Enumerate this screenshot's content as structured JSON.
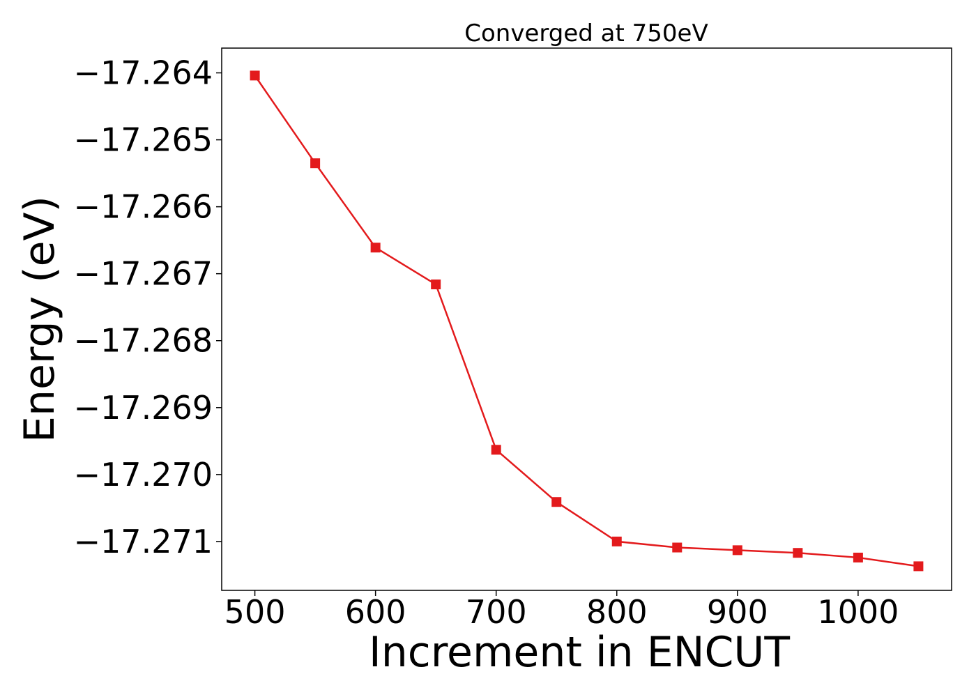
{
  "chart_data": {
    "type": "line",
    "title": "Converged at 750eV",
    "xlabel": "Increment in ENCUT",
    "ylabel": "Energy (eV)",
    "xlim": [
      472.5,
      1077.5
    ],
    "ylim": [
      -17.27173,
      -17.26363
    ],
    "x_ticks": [
      500,
      600,
      700,
      800,
      900,
      1000
    ],
    "x_tick_labels": [
      "500",
      "600",
      "700",
      "800",
      "900",
      "1000"
    ],
    "y_ticks": [
      -17.264,
      -17.265,
      -17.266,
      -17.267,
      -17.268,
      -17.269,
      -17.27,
      -17.271
    ],
    "y_tick_labels": [
      "−17.264",
      "−17.265",
      "−17.266",
      "−17.267",
      "−17.268",
      "−17.269",
      "−17.270",
      "−17.271"
    ],
    "grid": false,
    "legend": "none",
    "marker": "square",
    "color": "#e31a1c",
    "series": [
      {
        "x": [
          500,
          550,
          600,
          650,
          700,
          750,
          800,
          850,
          900,
          950,
          1000,
          1050
        ],
        "y": [
          -17.26404,
          -17.26535,
          -17.26661,
          -17.26716,
          -17.26963,
          -17.27041,
          -17.271,
          -17.27109,
          -17.27113,
          -17.27117,
          -17.27124,
          -17.27137
        ]
      }
    ]
  }
}
